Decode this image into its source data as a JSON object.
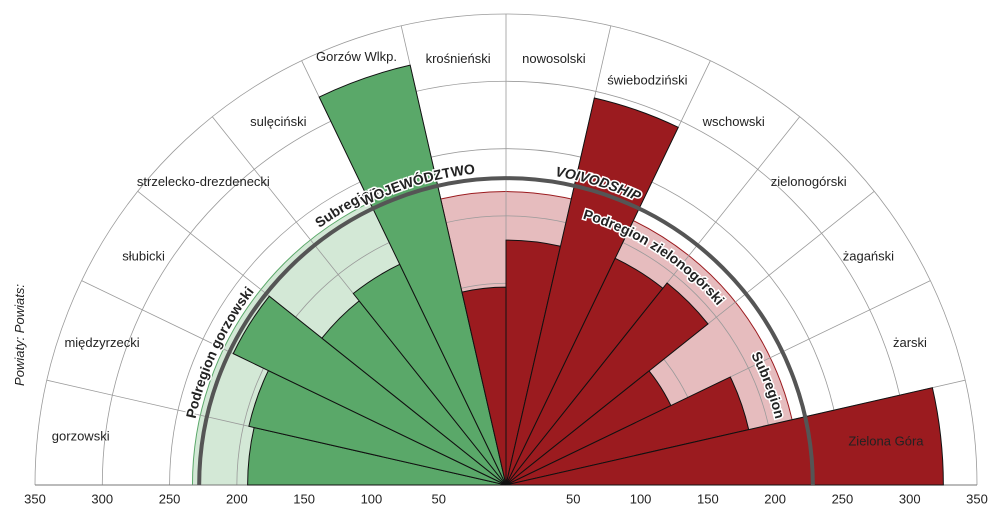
{
  "chart_data": {
    "type": "polar-bar",
    "axis_label": "Powiaty:",
    "axis_label_en": "Powiats:",
    "categories": [
      "gorzowski",
      "międzyrzecki",
      "słubicki",
      "strzelecko-drezdenecki",
      "sulęciński",
      "Gorzów Wlkp.",
      "krośnieński",
      "nowosolski",
      "świebodziński",
      "wschowski",
      "zielonogórski",
      "żagański",
      "żarski",
      "Zielona Góra"
    ],
    "series": [
      {
        "name": "Podregion gorzowski",
        "name_en": "Subregion",
        "color": "#5aa869",
        "band_color": "#d3e8d6",
        "reference": 233,
        "values": [
          192,
          196,
          225,
          175,
          182,
          320,
          null,
          null,
          null,
          null,
          null,
          null,
          null,
          null
        ]
      },
      {
        "name": "Podregion zielonogórski",
        "name_en": "Subregion",
        "color": "#9b1b1f",
        "band_color": "#e6bcbe",
        "reference": 218,
        "values": [
          null,
          null,
          null,
          null,
          null,
          null,
          147,
          182,
          295,
          187,
          192,
          136,
          185,
          325
        ]
      }
    ],
    "total": {
      "name": "WOJEWÓDZTWO",
      "name_en": "VOIVODSHIP",
      "value": 228,
      "color": "#555555"
    },
    "rlim": [
      0,
      350
    ],
    "rticks": [
      50,
      100,
      150,
      200,
      250,
      300,
      350
    ]
  }
}
